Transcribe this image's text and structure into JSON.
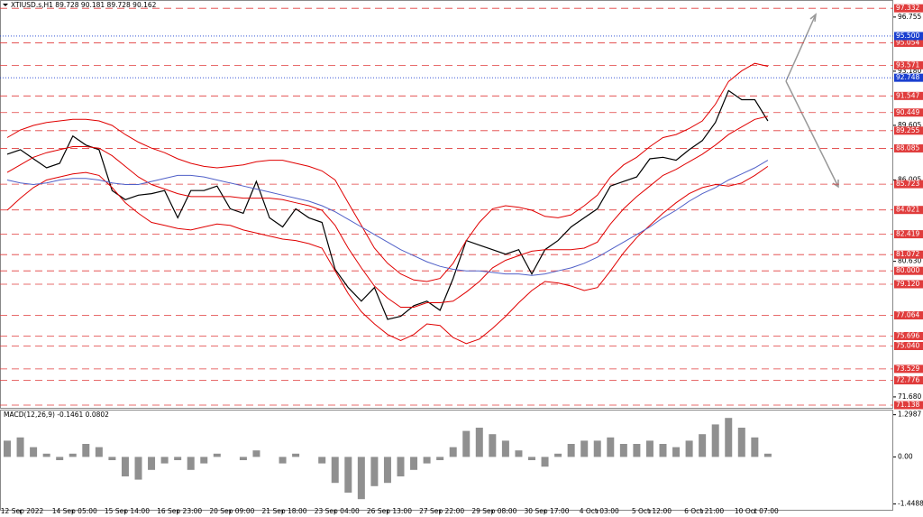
{
  "chart_data": {
    "type": "line",
    "title": "XTIUSD.s,H1  89.728 90.181 89.728 90.162",
    "categories": [
      null,
      "12 Sep 2022",
      null,
      null,
      null,
      "14 Sep 05:00",
      null,
      null,
      null,
      "15 Sep 14:00",
      null,
      null,
      null,
      "16 Sep 23:00",
      null,
      null,
      null,
      "20 Sep 09:00",
      null,
      null,
      null,
      "21 Sep 18:00",
      null,
      null,
      null,
      "23 Sep 04:00",
      null,
      null,
      null,
      "26 Sep 13:00",
      null,
      null,
      null,
      "27 Sep 22:00",
      null,
      null,
      null,
      "29 Sep 08:00",
      null,
      null,
      null,
      "30 Sep 17:00",
      null,
      null,
      null,
      "4 Oct 03:00",
      null,
      null,
      null,
      "5 Oct 12:00",
      null,
      null,
      null,
      "6 Oct 21:00",
      null,
      null,
      null,
      "10 Oct 07:00",
      null
    ],
    "series": [
      {
        "color": "#000000",
        "values": [
          87.7,
          88.0,
          87.4,
          86.8,
          87.1,
          88.9,
          88.3,
          88.0,
          85.3,
          84.7,
          85.0,
          85.1,
          85.3,
          83.5,
          85.3,
          85.3,
          85.6,
          84.1,
          83.8,
          85.9,
          83.5,
          82.9,
          84.1,
          83.5,
          83.2,
          80.1,
          78.9,
          78.0,
          78.9,
          76.8,
          77.0,
          77.7,
          78.0,
          77.4,
          79.5,
          82.0,
          81.7,
          81.4,
          81.1,
          81.4,
          79.8,
          81.4,
          82.0,
          82.9,
          83.5,
          84.1,
          85.6,
          85.9,
          86.2,
          87.4,
          87.5,
          87.3,
          88.0,
          88.6,
          89.8,
          91.9,
          91.3,
          91.3,
          89.9
        ]
      },
      {
        "color": "#e00000",
        "values": [
          88.8,
          89.3,
          89.6,
          89.8,
          89.9,
          90.0,
          90.0,
          89.9,
          89.6,
          89.0,
          88.5,
          88.1,
          87.8,
          87.4,
          87.1,
          86.9,
          86.8,
          86.9,
          87.0,
          87.2,
          87.3,
          87.3,
          87.1,
          86.9,
          86.6,
          86.0,
          84.5,
          83.0,
          81.5,
          80.5,
          79.8,
          79.4,
          79.3,
          79.5,
          80.5,
          82.0,
          83.2,
          84.1,
          84.3,
          84.2,
          84.0,
          83.6,
          83.5,
          83.7,
          84.3,
          85.0,
          86.2,
          87.0,
          87.5,
          88.2,
          88.8,
          89.0,
          89.4,
          89.9,
          91.0,
          92.5,
          93.2,
          93.7,
          93.5
        ]
      },
      {
        "color": "#e00000",
        "values": [
          86.5,
          87.0,
          87.5,
          87.8,
          88.0,
          88.2,
          88.2,
          88.1,
          87.6,
          86.9,
          86.2,
          85.7,
          85.4,
          85.1,
          84.9,
          84.9,
          84.9,
          84.9,
          84.8,
          84.8,
          84.8,
          84.7,
          84.5,
          84.3,
          84.0,
          83.0,
          81.5,
          80.2,
          79.0,
          78.2,
          77.6,
          77.6,
          77.9,
          77.9,
          78.0,
          78.6,
          79.3,
          80.2,
          80.7,
          81.0,
          81.3,
          81.4,
          81.4,
          81.4,
          81.5,
          81.9,
          83.1,
          84.1,
          84.9,
          85.6,
          86.3,
          86.7,
          87.2,
          87.7,
          88.3,
          89.0,
          89.5,
          90.0,
          90.2
        ]
      },
      {
        "color": "#e00000",
        "values": [
          84.0,
          84.8,
          85.5,
          86.0,
          86.2,
          86.4,
          86.5,
          86.3,
          85.5,
          84.5,
          83.8,
          83.2,
          83.0,
          82.8,
          82.7,
          82.9,
          83.1,
          83.0,
          82.7,
          82.5,
          82.3,
          82.1,
          82.0,
          81.8,
          81.5,
          80.0,
          78.5,
          77.3,
          76.5,
          75.8,
          75.4,
          75.8,
          76.5,
          76.4,
          75.6,
          75.2,
          75.5,
          76.2,
          77.0,
          77.9,
          78.7,
          79.3,
          79.2,
          79.0,
          78.7,
          78.9,
          80.0,
          81.2,
          82.2,
          83.0,
          83.8,
          84.5,
          85.1,
          85.5,
          85.7,
          85.6,
          85.8,
          86.3,
          86.9
        ]
      },
      {
        "color": "#5060c8",
        "values": [
          86.0,
          85.8,
          85.7,
          85.8,
          86.0,
          86.1,
          86.1,
          86.0,
          85.8,
          85.7,
          85.7,
          85.9,
          86.1,
          86.3,
          86.3,
          86.2,
          86.0,
          85.8,
          85.6,
          85.4,
          85.2,
          85.0,
          84.8,
          84.6,
          84.3,
          83.9,
          83.4,
          82.9,
          82.4,
          81.9,
          81.4,
          81.0,
          80.6,
          80.3,
          80.1,
          80.0,
          80.0,
          79.9,
          79.8,
          79.8,
          79.7,
          79.8,
          80.0,
          80.2,
          80.5,
          80.9,
          81.4,
          81.9,
          82.4,
          82.9,
          83.5,
          84.0,
          84.6,
          85.1,
          85.5,
          86.0,
          86.4,
          86.8,
          87.3
        ]
      }
    ],
    "ylim": [
      70.96,
      97.82
    ],
    "yticks": [
      96.755,
      {
        "value": 93.18,
        "label": "93.180"
      },
      89.605,
      86.005,
      {
        "value": 80.63,
        "label": "80.630"
      },
      {
        "value": 71.68,
        "label": "71.680"
      }
    ],
    "levels_color": "#e03c3c",
    "levels": [
      97.332,
      95.054,
      93.571,
      91.547,
      90.449,
      89.255,
      88.085,
      85.723,
      84.021,
      82.419,
      81.072,
      {
        "value": 80,
        "label": "80.000"
      },
      {
        "value": 79.12,
        "label": "79.120"
      },
      77.064,
      75.696,
      {
        "value": 75.04,
        "label": "75.040"
      },
      73.529,
      72.776,
      71.138
    ],
    "pivots_color": "#1a3fd0",
    "pivots": [
      {
        "value": 95.5,
        "label": "95.500"
      },
      92.748
    ],
    "macd": {
      "title": "MACD(12,26,9) -0.1461 0.0802",
      "color": "#909090",
      "ylim": [
        -1.6,
        1.4
      ],
      "yticks": [
        1.2987,
        {
          "value": 0,
          "label": "0.00"
        },
        -1.4488
      ],
      "values": [
        0.5,
        0.6,
        0.3,
        0.1,
        -0.1,
        0.1,
        0.4,
        0.3,
        -0.1,
        -0.6,
        -0.7,
        -0.4,
        -0.2,
        -0.1,
        -0.4,
        -0.2,
        0.1,
        0.0,
        -0.1,
        0.2,
        0.0,
        -0.2,
        0.1,
        0.0,
        -0.2,
        -0.8,
        -1.1,
        -1.3,
        -0.9,
        -0.8,
        -0.6,
        -0.4,
        -0.2,
        -0.1,
        0.3,
        0.8,
        0.9,
        0.7,
        0.5,
        0.2,
        -0.1,
        -0.3,
        0.1,
        0.4,
        0.5,
        0.5,
        0.6,
        0.4,
        0.4,
        0.5,
        0.4,
        0.3,
        0.5,
        0.7,
        1.0,
        1.2,
        0.9,
        0.6,
        0.1
      ]
    }
  }
}
